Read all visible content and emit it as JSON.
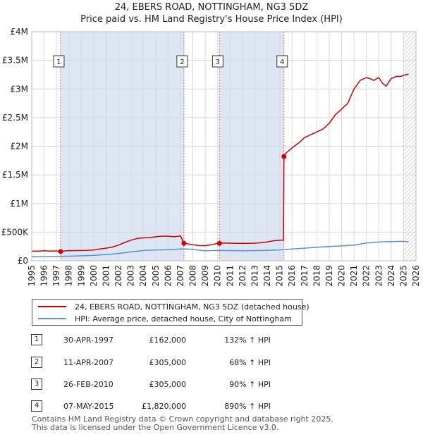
{
  "chart_data": {
    "type": "line",
    "title": "24, EBERS ROAD, NOTTINGHAM, NG3 5DZ",
    "subtitle": "Price paid vs. HM Land Registry's House Price Index (HPI)",
    "xlim": [
      1995,
      2026
    ],
    "ylim": [
      0,
      4000000
    ],
    "x_ticks": [
      "1995",
      "1996",
      "1997",
      "1998",
      "1999",
      "2000",
      "2001",
      "2002",
      "2003",
      "2004",
      "2005",
      "2006",
      "2007",
      "2008",
      "2009",
      "2010",
      "2011",
      "2012",
      "2013",
      "2014",
      "2015",
      "2016",
      "2017",
      "2018",
      "2019",
      "2020",
      "2021",
      "2022",
      "2023",
      "2024",
      "2025",
      "2026"
    ],
    "y_ticks": [
      {
        "value": 0,
        "label": "£0"
      },
      {
        "value": 500000,
        "label": "£500K"
      },
      {
        "value": 1000000,
        "label": "£1M"
      },
      {
        "value": 1500000,
        "label": "£1.5M"
      },
      {
        "value": 2000000,
        "label": "£2M"
      },
      {
        "value": 2500000,
        "label": "£2.5M"
      },
      {
        "value": 3000000,
        "label": "£3M"
      },
      {
        "value": 3500000,
        "label": "£3.5M"
      },
      {
        "value": 4000000,
        "label": "£4M"
      }
    ],
    "series": [
      {
        "name": "24, EBERS ROAD, NOTTINGHAM, NG3 5DZ (detached house)",
        "color": "#cc0000",
        "x": [
          1995.0,
          1995.5,
          1996.0,
          1996.5,
          1997.0,
          1997.33,
          1997.8,
          1998.5,
          1999.0,
          1999.5,
          2000.0,
          2000.5,
          2001.0,
          2001.5,
          2002.0,
          2002.5,
          2003.0,
          2003.5,
          2004.0,
          2004.5,
          2005.0,
          2005.5,
          2006.0,
          2006.5,
          2007.0,
          2007.28,
          2007.5,
          2008.0,
          2008.5,
          2009.0,
          2009.5,
          2010.0,
          2010.15,
          2010.5,
          2011.0,
          2011.5,
          2012.0,
          2012.5,
          2013.0,
          2013.5,
          2014.0,
          2014.5,
          2015.0,
          2015.3,
          2015.35,
          2015.5,
          2016.0,
          2016.5,
          2017.0,
          2017.5,
          2018.0,
          2018.5,
          2019.0,
          2019.5,
          2020.0,
          2020.5,
          2021.0,
          2021.5,
          2022.0,
          2022.3,
          2022.6,
          2023.0,
          2023.3,
          2023.6,
          2024.0,
          2024.4,
          2024.8,
          2025.0,
          2025.4
        ],
        "values": [
          170000,
          168000,
          175000,
          170000,
          172000,
          162000,
          175000,
          178000,
          180000,
          182000,
          190000,
          205000,
          220000,
          240000,
          275000,
          320000,
          360000,
          390000,
          400000,
          405000,
          420000,
          430000,
          430000,
          420000,
          435000,
          305000,
          300000,
          280000,
          265000,
          265000,
          280000,
          305000,
          305000,
          310000,
          308000,
          305000,
          305000,
          305000,
          308000,
          315000,
          330000,
          350000,
          360000,
          360000,
          1820000,
          1880000,
          1970000,
          2050000,
          2150000,
          2200000,
          2250000,
          2300000,
          2400000,
          2550000,
          2650000,
          2750000,
          3000000,
          3150000,
          3200000,
          3180000,
          3150000,
          3200000,
          3100000,
          3050000,
          3180000,
          3220000,
          3220000,
          3240000,
          3260000
        ]
      },
      {
        "name": "HPI: Average price, detached house, City of Nottingham",
        "color": "#5b8fd0",
        "x": [
          1995.0,
          1996.0,
          1997.0,
          1998.0,
          1999.0,
          2000.0,
          2001.0,
          2002.0,
          2003.0,
          2004.0,
          2005.0,
          2006.0,
          2007.0,
          2007.5,
          2008.0,
          2008.5,
          2009.0,
          2009.5,
          2010.0,
          2011.0,
          2012.0,
          2013.0,
          2014.0,
          2015.0,
          2016.0,
          2017.0,
          2018.0,
          2019.0,
          2020.0,
          2021.0,
          2022.0,
          2023.0,
          2024.0,
          2025.0,
          2025.4
        ],
        "values": [
          70000,
          72000,
          76000,
          80000,
          86000,
          95000,
          108000,
          128000,
          155000,
          180000,
          190000,
          195000,
          205000,
          205000,
          200000,
          185000,
          175000,
          178000,
          180000,
          178000,
          175000,
          178000,
          182000,
          190000,
          205000,
          220000,
          235000,
          250000,
          260000,
          275000,
          310000,
          330000,
          335000,
          340000,
          330000
        ]
      }
    ],
    "sales": [
      {
        "num": "1",
        "x": 1997.33,
        "value": 162000
      },
      {
        "num": "2",
        "x": 2007.28,
        "value": 305000
      },
      {
        "num": "3",
        "x": 2010.15,
        "value": 305000
      },
      {
        "num": "4",
        "x": 2015.35,
        "value": 1820000
      }
    ],
    "shaded_spans": [
      [
        1997.33,
        2007.28
      ],
      [
        2010.15,
        2015.35
      ]
    ],
    "hatched_from": 2025.0
  },
  "legend": {
    "property_label": "24, EBERS ROAD, NOTTINGHAM, NG3 5DZ (detached house)",
    "hpi_label": "HPI: Average price, detached house, City of Nottingham"
  },
  "sales_table": [
    {
      "num": "1",
      "date": "30-APR-1997",
      "price": "£162,000",
      "hpi": "132% ↑ HPI"
    },
    {
      "num": "2",
      "date": "11-APR-2007",
      "price": "£305,000",
      "hpi": "68% ↑ HPI"
    },
    {
      "num": "3",
      "date": "26-FEB-2010",
      "price": "£305,000",
      "hpi": "90% ↑ HPI"
    },
    {
      "num": "4",
      "date": "07-MAY-2015",
      "price": "£1,820,000",
      "hpi": "890% ↑ HPI"
    }
  ],
  "footer": {
    "line1": "Contains HM Land Registry data © Crown copyright and database right 2025.",
    "line2": "This data is licensed under the Open Government Licence v3.0."
  }
}
